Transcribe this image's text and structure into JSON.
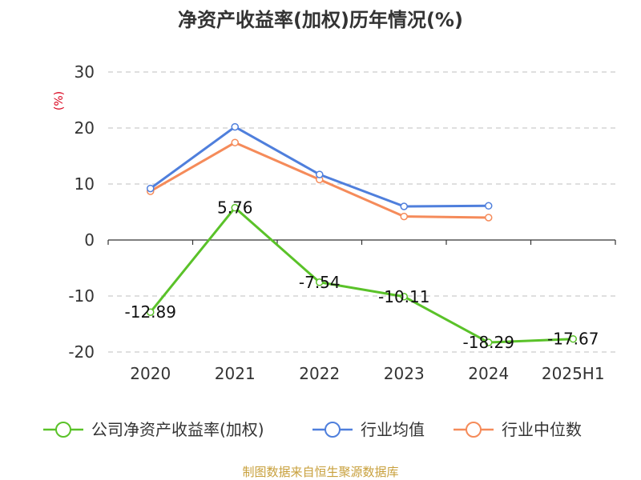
{
  "chart_data": {
    "type": "line",
    "title": "净资产收益率(加权)历年情况(%)",
    "ylabel": "(%)",
    "categories": [
      "2020",
      "2021",
      "2022",
      "2023",
      "2024",
      "2025H1"
    ],
    "ylim": [
      -20,
      30
    ],
    "yticks": [
      30,
      20,
      10,
      0,
      -10,
      -20
    ],
    "grid": true,
    "legend_position": "bottom",
    "series": [
      {
        "name": "公司净资产收益率(加权)",
        "color": "#5ac229",
        "values": [
          -12.89,
          5.76,
          -7.54,
          -10.11,
          -18.29,
          -17.67
        ],
        "labels": [
          "-12.89",
          "5.76",
          "-7.54",
          "-10.11",
          "-18.29",
          "-17.67"
        ]
      },
      {
        "name": "行业均值",
        "color": "#4f7fdc",
        "values": [
          9.2,
          20.2,
          11.7,
          6.0,
          6.1,
          null
        ]
      },
      {
        "name": "行业中位数",
        "color": "#f58b5a",
        "values": [
          8.7,
          17.4,
          10.8,
          4.2,
          4.0,
          null
        ]
      }
    ],
    "source": "制图数据来自恒生聚源数据库"
  }
}
